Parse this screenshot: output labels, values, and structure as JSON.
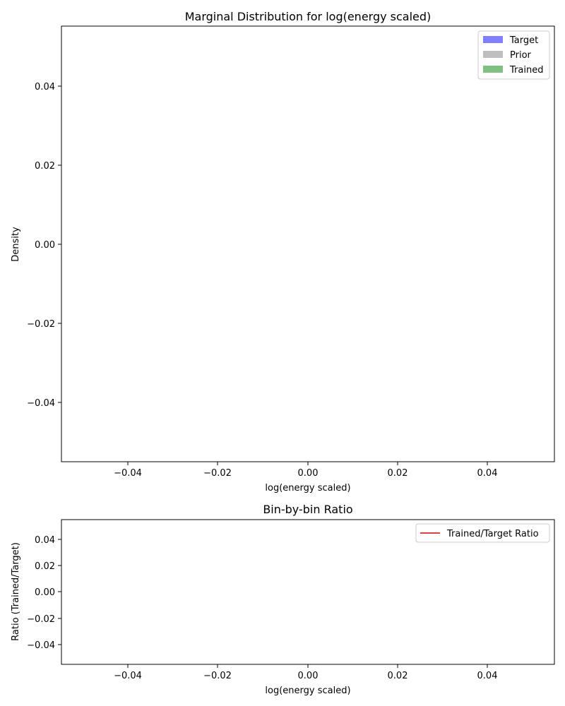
{
  "chart_data": [
    {
      "type": "histogram",
      "title": "Marginal Distribution for log(energy scaled)",
      "xlabel": "log(energy scaled)",
      "ylabel": "Density",
      "xlim": [
        -0.055,
        0.055
      ],
      "ylim": [
        -0.055,
        0.055
      ],
      "xticks": [
        "−0.04",
        "−0.02",
        "0.00",
        "0.02",
        "0.04"
      ],
      "yticks": [
        "−0.04",
        "−0.02",
        "0.00",
        "0.02",
        "0.04"
      ],
      "xtick_values": [
        -0.04,
        -0.02,
        0.0,
        0.02,
        0.04
      ],
      "ytick_values": [
        -0.04,
        -0.02,
        0.0,
        0.02,
        0.04
      ],
      "legend_position": "top-right",
      "series": [
        {
          "name": "Target",
          "color": "#8080ff",
          "values": []
        },
        {
          "name": "Prior",
          "color": "#bfbfbf",
          "values": []
        },
        {
          "name": "Trained",
          "color": "#80c080",
          "values": []
        }
      ]
    },
    {
      "type": "line",
      "title": "Bin-by-bin Ratio",
      "xlabel": "log(energy scaled)",
      "ylabel": "Ratio (Trained/Target)",
      "xlim": [
        -0.055,
        0.055
      ],
      "ylim": [
        -0.055,
        0.055
      ],
      "xticks": [
        "−0.04",
        "−0.02",
        "0.00",
        "0.02",
        "0.04"
      ],
      "yticks": [
        "−0.04",
        "−0.02",
        "0.00",
        "0.02",
        "0.04"
      ],
      "xtick_values": [
        -0.04,
        -0.02,
        0.0,
        0.02,
        0.04
      ],
      "ytick_values": [
        -0.04,
        -0.02,
        0.0,
        0.02,
        0.04
      ],
      "legend_position": "top-right",
      "series": [
        {
          "name": "Trained/Target Ratio",
          "color": "#d94040",
          "values": []
        }
      ]
    }
  ]
}
